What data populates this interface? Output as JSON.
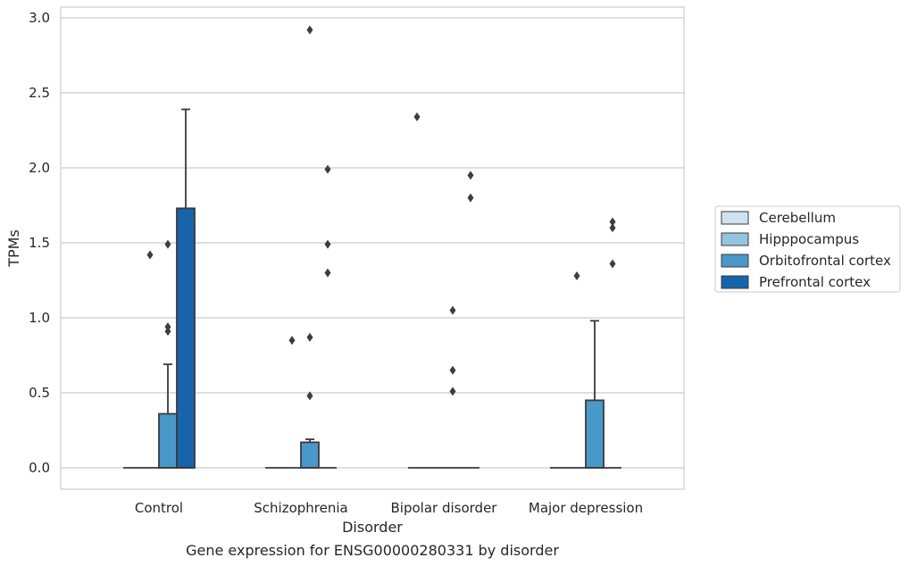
{
  "chart_data": {
    "type": "box",
    "title": "Gene expression for ENSG00000280331 by disorder",
    "xlabel": "Disorder",
    "ylabel": "TPMs",
    "ylim": [
      -0.14,
      3.07
    ],
    "yticks": [
      0.0,
      0.5,
      1.0,
      1.5,
      2.0,
      2.5,
      3.0
    ],
    "ytick_labels": [
      "0.0",
      "0.5",
      "1.0",
      "1.5",
      "2.0",
      "2.5",
      "3.0"
    ],
    "grid": "horizontal",
    "legend_position": "right",
    "categories": [
      "Control",
      "Schizophrenia",
      "Bipolar disorder",
      "Major depression"
    ],
    "series": [
      {
        "name": "Cerebellum",
        "color": "#d0e1f2",
        "boxes": [
          {
            "q1": 0,
            "median": 0,
            "q3": 0,
            "whisker_low": 0,
            "whisker_high": 0,
            "outliers": []
          },
          {
            "q1": 0,
            "median": 0,
            "q3": 0,
            "whisker_low": 0,
            "whisker_high": 0,
            "outliers": []
          },
          {
            "q1": 0,
            "median": 0,
            "q3": 0,
            "whisker_low": 0,
            "whisker_high": 0,
            "outliers": [
              2.34
            ]
          },
          {
            "q1": 0,
            "median": 0,
            "q3": 0,
            "whisker_low": 0,
            "whisker_high": 0,
            "outliers": []
          }
        ]
      },
      {
        "name": "Hipppocampus",
        "color": "#94c4df",
        "boxes": [
          {
            "q1": 0,
            "median": 0,
            "q3": 0,
            "whisker_low": 0,
            "whisker_high": 0,
            "outliers": [
              1.42
            ]
          },
          {
            "q1": 0,
            "median": 0,
            "q3": 0,
            "whisker_low": 0,
            "whisker_high": 0,
            "outliers": [
              0.85
            ]
          },
          {
            "q1": 0,
            "median": 0,
            "q3": 0,
            "whisker_low": 0,
            "whisker_high": 0,
            "outliers": []
          },
          {
            "q1": 0,
            "median": 0,
            "q3": 0,
            "whisker_low": 0,
            "whisker_high": 0,
            "outliers": [
              1.28
            ]
          }
        ]
      },
      {
        "name": "Orbitofrontal cortex",
        "color": "#4a98c9",
        "boxes": [
          {
            "q1": 0,
            "median": 0,
            "q3": 0.36,
            "whisker_low": 0,
            "whisker_high": 0.69,
            "outliers": [
              1.49,
              0.94,
              0.91
            ]
          },
          {
            "q1": 0,
            "median": 0,
            "q3": 0.17,
            "whisker_low": 0,
            "whisker_high": 0.19,
            "outliers": [
              2.92,
              0.87,
              0.48
            ]
          },
          {
            "q1": 0,
            "median": 0,
            "q3": 0,
            "whisker_low": 0,
            "whisker_high": 0,
            "outliers": [
              1.05,
              0.65,
              0.51
            ]
          },
          {
            "q1": 0,
            "median": 0,
            "q3": 0.45,
            "whisker_low": 0,
            "whisker_high": 0.98,
            "outliers": []
          }
        ]
      },
      {
        "name": "Prefrontal cortex",
        "color": "#1764ab",
        "boxes": [
          {
            "q1": 0,
            "median": 0,
            "q3": 1.73,
            "whisker_low": 0,
            "whisker_high": 2.39,
            "outliers": []
          },
          {
            "q1": 0,
            "median": 0,
            "q3": 0,
            "whisker_low": 0,
            "whisker_high": 0,
            "outliers": [
              1.99,
              1.49,
              1.3
            ]
          },
          {
            "q1": 0,
            "median": 0,
            "q3": 0,
            "whisker_low": 0,
            "whisker_high": 0,
            "outliers": [
              1.95,
              1.8
            ]
          },
          {
            "q1": 0,
            "median": 0,
            "q3": 0,
            "whisker_low": 0,
            "whisker_high": 0,
            "outliers": [
              1.64,
              1.6,
              1.36
            ]
          }
        ]
      }
    ]
  }
}
